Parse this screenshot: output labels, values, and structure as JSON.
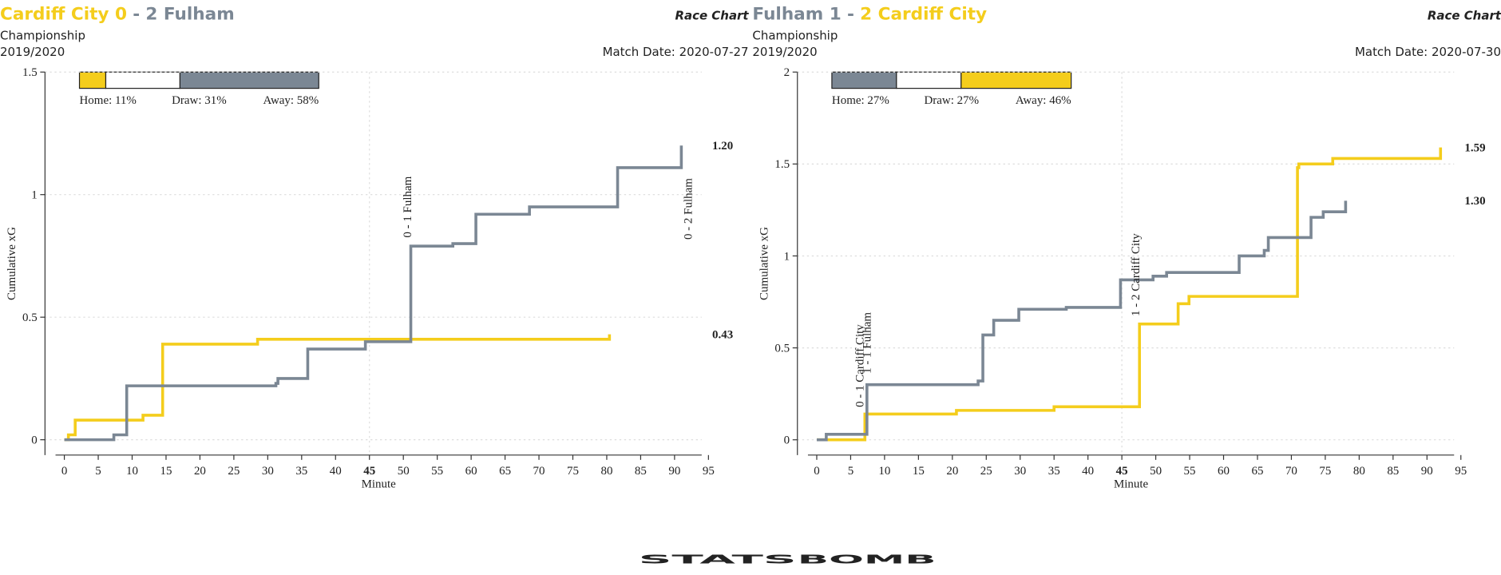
{
  "chart_data": [
    {
      "type": "line",
      "step": true,
      "title": [
        {
          "text": "Cardiff City 0",
          "color": "#f4cd1c"
        },
        {
          "text": "-",
          "color": "#7b8794"
        },
        {
          "text": "2 Fulham",
          "color": "#7b8794"
        }
      ],
      "subtitle": "Race Chart",
      "competition": "Championship",
      "season": "2019/2020",
      "match_date": "Match Date: 2020-07-27",
      "probabilities": [
        {
          "label": "Home: 11%",
          "value": 11,
          "color": "#f4cd1c"
        },
        {
          "label": "Draw: 31%",
          "value": 31,
          "color": "#ffffff"
        },
        {
          "label": "Away: 58%",
          "value": 58,
          "color": "#7b8794"
        }
      ],
      "xlabel": "Minute",
      "ylabel": "Cumulative xG",
      "xlim": [
        -1.3,
        94
      ],
      "ylim": [
        -0.0625,
        1.5
      ],
      "xticks": [
        0,
        5,
        10,
        15,
        20,
        25,
        30,
        35,
        40,
        45,
        50,
        55,
        60,
        65,
        70,
        75,
        80,
        85,
        90,
        95
      ],
      "yticks": [
        0,
        0.5,
        1,
        1.5
      ],
      "highlight_x": 45,
      "grid": true,
      "series": [
        {
          "color": "#f4cd1c",
          "x": [
            0,
            0.6,
            1.6,
            11.6,
            14.5,
            28.5,
            80.4
          ],
          "values": [
            0,
            0.02,
            0.08,
            0.1,
            0.39,
            0.41,
            0.43
          ]
        },
        {
          "color": "#7b8794",
          "x": [
            0,
            7.3,
            9.2,
            31.2,
            31.5,
            35.9,
            44.4,
            51.1,
            57.3,
            60.7,
            68.6,
            81.6,
            91
          ],
          "values": [
            0,
            0.02,
            0.22,
            0.23,
            0.25,
            0.37,
            0.4,
            0.79,
            0.8,
            0.92,
            0.95,
            1.11,
            1.2
          ],
          "value_labels": [
            null,
            null,
            null,
            null,
            null,
            null,
            null,
            null,
            null,
            null,
            null,
            null,
            "1.20"
          ]
        }
      ],
      "annotations": [
        {
          "text": "0 - 1 Fulham",
          "x": 50.6,
          "color": "#7b8794"
        },
        {
          "text": "0 - 2 Fulham",
          "x": 92,
          "color": "#7b8794"
        }
      ]
    },
    {
      "type": "line",
      "step": true,
      "title": [
        {
          "text": "Fulham 1",
          "color": "#7b8794"
        },
        {
          "text": "-",
          "color": "#7b8794"
        },
        {
          "text": "2 Cardiff City",
          "color": "#f4cd1c"
        }
      ],
      "subtitle": "Race Chart",
      "competition": "Championship",
      "season": "2019/2020",
      "match_date": "Match Date: 2020-07-30",
      "probabilities": [
        {
          "label": "Home: 27%",
          "value": 27,
          "color": "#7b8794"
        },
        {
          "label": "Draw: 27%",
          "value": 27,
          "color": "#ffffff"
        },
        {
          "label": "Away: 46%",
          "value": 46,
          "color": "#f4cd1c"
        }
      ],
      "xlabel": "Minute",
      "ylabel": "Cumulative xG",
      "xlim": [
        -1.3,
        94
      ],
      "ylim": [
        -0.083,
        2
      ],
      "xticks": [
        0,
        5,
        10,
        15,
        20,
        25,
        30,
        35,
        40,
        45,
        50,
        55,
        60,
        65,
        70,
        75,
        80,
        85,
        90,
        95
      ],
      "yticks": [
        0,
        0.5,
        1,
        1.5,
        2
      ],
      "highlight_x": 45,
      "grid": true,
      "series": [
        {
          "color": "#f4cd1c",
          "x": [
            0,
            7.1,
            20.6,
            35,
            47.6,
            53.3,
            54.9,
            70.9,
            71.1,
            76.1,
            92
          ],
          "values": [
            0,
            0.14,
            0.16,
            0.18,
            0.63,
            0.74,
            0.78,
            1.48,
            1.5,
            1.53,
            1.59
          ]
        },
        {
          "color": "#7b8794",
          "x": [
            0,
            1.4,
            7.4,
            23.8,
            24.5,
            26.1,
            29.8,
            36.8,
            44.8,
            49.6,
            51.6,
            62.3,
            66,
            66.6,
            72.9,
            74.7,
            78
          ],
          "values": [
            0,
            0.03,
            0.3,
            0.32,
            0.57,
            0.65,
            0.71,
            0.72,
            0.87,
            0.89,
            0.91,
            1,
            1.03,
            1.1,
            1.21,
            1.24,
            1.3
          ],
          "value_labels": [
            null,
            null,
            null,
            null,
            null,
            null,
            null,
            null,
            null,
            null,
            null,
            null,
            null,
            null,
            null,
            null,
            "1.30"
          ]
        }
      ],
      "annotations": [
        {
          "text": "0 - 1 Cardiff City",
          "x": 6.3,
          "color": "#f4cd1c"
        },
        {
          "text": "1 - 1 Fulham",
          "x": 7.4,
          "color": "#7b8794"
        },
        {
          "text": "1 - 2 Cardiff City",
          "x": 47,
          "color": "#f4cd1c"
        }
      ]
    }
  ],
  "footer": {
    "logo": [
      {
        "text": "STATS",
        "color": "#111111"
      },
      {
        "text": "BOMB",
        "color": "#d7262e"
      }
    ]
  }
}
